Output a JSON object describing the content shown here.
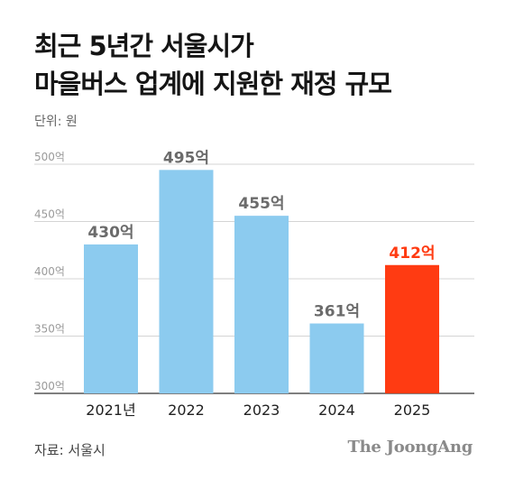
{
  "title_line1": "최근 5년간 서울시가",
  "title_line2": "마을버스 업계에 지원한 재정 규모",
  "unit": "단위: 원",
  "source": "자료: 서울시",
  "brand": "The JoongAng",
  "colors": {
    "bar": "#8ccbef",
    "highlight": "#ff3b12",
    "label": "#6b6b6b",
    "grid": "#d4d4d4"
  },
  "chart_data": {
    "type": "bar",
    "title": "최근 5년간 서울시가 마을버스 업계에 지원한 재정 규모",
    "categories": [
      "2021년",
      "2022",
      "2023",
      "2024",
      "2025"
    ],
    "values": [
      430,
      495,
      455,
      361,
      412
    ],
    "data_labels": [
      "430억",
      "495억",
      "455억",
      "361억",
      "412억"
    ],
    "highlight_index": 4,
    "ylim": [
      300,
      500
    ],
    "yticks": [
      300,
      350,
      400,
      450,
      500
    ],
    "ytick_labels": [
      "300억",
      "350억",
      "400억",
      "450억",
      "500억"
    ],
    "grid": true,
    "legend": "none"
  }
}
